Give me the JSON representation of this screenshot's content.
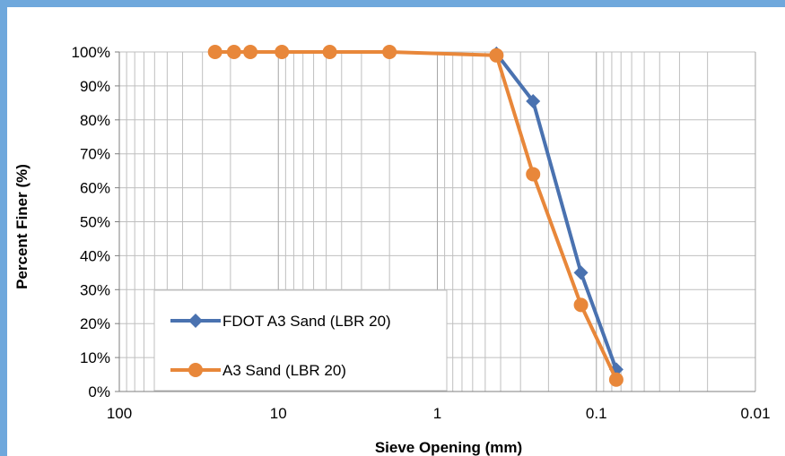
{
  "chart_data": {
    "type": "line",
    "x_scale": "log",
    "x_reversed": true,
    "xlim": [
      100,
      0.01
    ],
    "ylim": [
      0,
      100
    ],
    "xlabel": "Sieve Opening (mm)",
    "ylabel": "Percent Finer (%)",
    "x_tick_labels": [
      "100",
      "10",
      "1",
      "0.1",
      "0.01"
    ],
    "y_tick_labels": [
      "0%",
      "10%",
      "20%",
      "30%",
      "40%",
      "50%",
      "60%",
      "70%",
      "80%",
      "90%",
      "100%"
    ],
    "grid": true,
    "legend_position": "lower-left",
    "series": [
      {
        "name": "FDOT A3 Sand (LBR 20)",
        "color": "#4a72b0",
        "marker": "diamond",
        "x": [
          0.425,
          0.25,
          0.125,
          0.075
        ],
        "y": [
          99.5,
          85.5,
          35,
          6.5
        ]
      },
      {
        "name": "A3 Sand (LBR 20)",
        "color": "#e8873a",
        "marker": "circle",
        "x": [
          25,
          19,
          15,
          9.5,
          4.75,
          2,
          0.425,
          0.25,
          0.125,
          0.075
        ],
        "y": [
          100,
          100,
          100,
          100,
          100,
          100,
          99,
          64,
          25.5,
          3.5
        ]
      }
    ]
  }
}
